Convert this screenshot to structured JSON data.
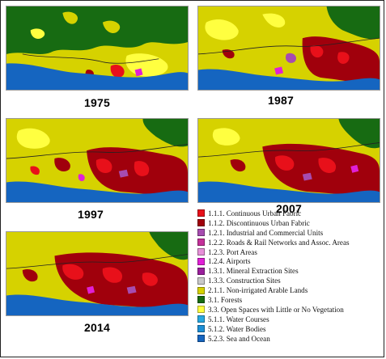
{
  "maps": [
    {
      "year": "1975"
    },
    {
      "year": "1987"
    },
    {
      "year": "1997"
    },
    {
      "year": "2007"
    },
    {
      "year": "2014"
    }
  ],
  "legend": [
    {
      "label": "1.1.1. Continuous Urban Fabric",
      "color": "#e8101a"
    },
    {
      "label": "1.1.2. Discontinuous Urban Fabric",
      "color": "#a0000c"
    },
    {
      "label": "1.2.1. Industrial and Commercial Units",
      "color": "#a64cb0"
    },
    {
      "label": "1.2.2. Roads & Rail Networks and Assoc. Areas",
      "color": "#c4309a"
    },
    {
      "label": "1.2.3. Port Areas",
      "color": "#e68fd8"
    },
    {
      "label": "1.2.4. Airports",
      "color": "#e020d6"
    },
    {
      "label": "1.3.1. Mineral Extraction Sites",
      "color": "#9a1f9c"
    },
    {
      "label": "1.3.3. Construction Sites",
      "color": "#c8c8c8"
    },
    {
      "label": "2.1.1. Non-irrigated Arable Lands",
      "color": "#d6d200"
    },
    {
      "label": "3.1. Forests",
      "color": "#176b12"
    },
    {
      "label": "3.3. Open Spaces with Little or No Vegetation",
      "color": "#ffff40"
    },
    {
      "label": "5.1.1. Water Courses",
      "color": "#27a8e0"
    },
    {
      "label": "5.1.2. Water Bodies",
      "color": "#1c8fd6"
    },
    {
      "label": "5.2.3. Sea and Ocean",
      "color": "#1565c0"
    }
  ]
}
